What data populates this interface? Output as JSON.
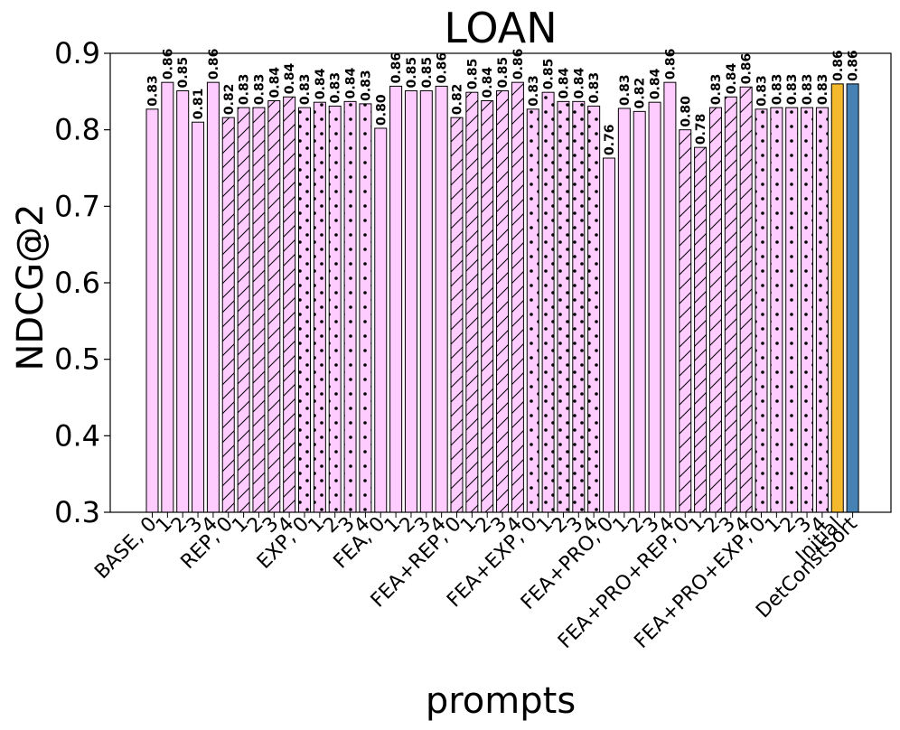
{
  "chart_data": {
    "type": "bar",
    "title": "LOAN",
    "xlabel": "prompts",
    "ylabel": "NDCG@2",
    "ylim": [
      0.3,
      0.9
    ],
    "yticks": [
      "0.3",
      "0.4",
      "0.5",
      "0.6",
      "0.7",
      "0.8",
      "0.9"
    ],
    "grid": false,
    "legend": "none",
    "colors": {
      "pink": "#ffccff",
      "gold": "#f5b92e",
      "blue": "#4682b4",
      "edge": "#000000"
    },
    "categories": [
      "BASE, 0",
      "1",
      "2",
      "3",
      "4",
      "REP, 0",
      "1",
      "2",
      "3",
      "4",
      "EXP, 0",
      "1",
      "2",
      "3",
      "4",
      "FEA, 0",
      "1",
      "2",
      "3",
      "4",
      "FEA+REP, 0",
      "1",
      "2",
      "3",
      "4",
      "FEA+EXP, 0",
      "1",
      "2",
      "3",
      "4",
      "FEA+PRO, 0",
      "1",
      "2",
      "3",
      "4",
      "FEA+PRO+REP, 0",
      "1",
      "2",
      "3",
      "4",
      "FEA+PRO+EXP, 0",
      "1",
      "2",
      "3",
      "4",
      "Initial",
      "DetConstSort"
    ],
    "values": [
      0.827,
      0.862,
      0.851,
      0.81,
      0.862,
      0.816,
      0.829,
      0.829,
      0.838,
      0.843,
      0.829,
      0.836,
      0.831,
      0.837,
      0.834,
      0.802,
      0.857,
      0.851,
      0.851,
      0.857,
      0.816,
      0.849,
      0.838,
      0.851,
      0.862,
      0.827,
      0.849,
      0.837,
      0.837,
      0.831,
      0.763,
      0.828,
      0.824,
      0.836,
      0.862,
      0.8,
      0.777,
      0.829,
      0.843,
      0.856,
      0.827,
      0.829,
      0.829,
      0.829,
      0.829,
      0.86,
      0.86
    ],
    "value_labels": [
      "0.83",
      "0.86",
      "0.85",
      "0.81",
      "0.86",
      "0.82",
      "0.83",
      "0.83",
      "0.84",
      "0.84",
      "0.83",
      "0.84",
      "0.83",
      "0.84",
      "0.83",
      "0.80",
      "0.86",
      "0.85",
      "0.85",
      "0.86",
      "0.82",
      "0.85",
      "0.84",
      "0.85",
      "0.86",
      "0.83",
      "0.85",
      "0.84",
      "0.84",
      "0.83",
      "0.76",
      "0.83",
      "0.82",
      "0.84",
      "0.86",
      "0.80",
      "0.78",
      "0.83",
      "0.84",
      "0.86",
      "0.83",
      "0.83",
      "0.83",
      "0.83",
      "0.83",
      "0.86",
      "0.86"
    ],
    "fills": [
      "plain",
      "plain",
      "plain",
      "plain",
      "plain",
      "hatch",
      "hatch",
      "hatch",
      "hatch",
      "hatch",
      "dots",
      "dots",
      "dots",
      "dots",
      "dots",
      "plain",
      "plain",
      "plain",
      "plain",
      "plain",
      "hatch",
      "hatch",
      "hatch",
      "hatch",
      "hatch",
      "dots",
      "dots",
      "dots",
      "dots",
      "dots",
      "plain",
      "plain",
      "plain",
      "plain",
      "plain",
      "hatch",
      "hatch",
      "hatch",
      "hatch",
      "hatch",
      "dots",
      "dots",
      "dots",
      "dots",
      "dots",
      "gold",
      "blue"
    ]
  }
}
